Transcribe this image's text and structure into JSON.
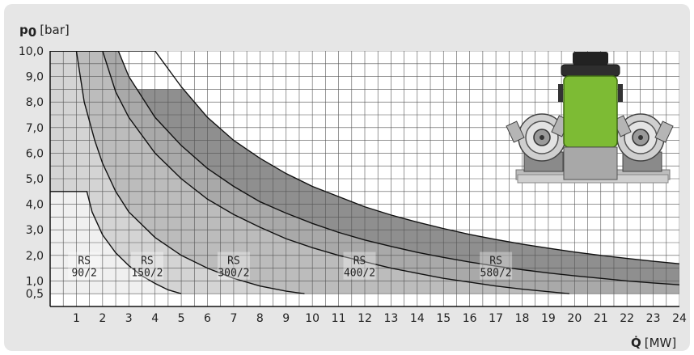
{
  "colors": {
    "background": "#e6e6e6",
    "plot_bg": "#ffffff",
    "grid": "#555555",
    "curve": "#111111",
    "shade_90": "#f0f0f0",
    "shade_150": "#d4d4d4",
    "shade_300": "#bcbcbc",
    "shade_400": "#a9a9a9",
    "shade_580": "#8f8f8f",
    "accent_green": "#7dbb34"
  },
  "chart_data": {
    "type": "area",
    "ylabel_symbol": "p",
    "ylabel_subscript": "0",
    "ylabel_unit": "[bar]",
    "xlabel_symbol": "Q̇",
    "xlabel_unit": "[MW]",
    "xlim": [
      0,
      24
    ],
    "ylim": [
      0,
      10
    ],
    "x_ticks": [
      1,
      2,
      3,
      4,
      5,
      6,
      7,
      8,
      9,
      10,
      11,
      12,
      13,
      14,
      15,
      16,
      17,
      18,
      19,
      20,
      21,
      22,
      23,
      24
    ],
    "y_ticks": [
      {
        "value": 0.5,
        "label": "0,5"
      },
      {
        "value": 1.0,
        "label": "1,0"
      },
      {
        "value": 2.0,
        "label": "2,0"
      },
      {
        "value": 3.0,
        "label": "3,0"
      },
      {
        "value": 4.0,
        "label": "4,0"
      },
      {
        "value": 5.0,
        "label": "5,0"
      },
      {
        "value": 6.0,
        "label": "6,0"
      },
      {
        "value": 7.0,
        "label": "7,0"
      },
      {
        "value": 8.0,
        "label": "8,0"
      },
      {
        "value": 9.0,
        "label": "9,0"
      },
      {
        "value": 10.0,
        "label": "10,0"
      }
    ],
    "grid": true,
    "grid_minor_step": 0.5,
    "series": [
      {
        "name": "RS 90/2",
        "label_lines": [
          "RS",
          "90/2"
        ],
        "label_at": [
          1.3,
          1.5
        ],
        "fill": "#f0f0f0",
        "boundary": [
          [
            0,
            4.5
          ],
          [
            1.4,
            4.5
          ],
          [
            1.6,
            3.7
          ],
          [
            2,
            2.8
          ],
          [
            2.5,
            2.1
          ],
          [
            3,
            1.6
          ],
          [
            3.5,
            1.2
          ],
          [
            4,
            0.9
          ],
          [
            4.5,
            0.65
          ],
          [
            5,
            0.5
          ]
        ]
      },
      {
        "name": "RS 150/2",
        "label_lines": [
          "RS",
          "150/2"
        ],
        "label_at": [
          3.7,
          1.5
        ],
        "fill": "#d4d4d4",
        "boundary": [
          [
            0,
            10
          ],
          [
            1,
            10
          ],
          [
            1.3,
            8
          ],
          [
            1.7,
            6.5
          ],
          [
            2,
            5.6
          ],
          [
            2.5,
            4.5
          ],
          [
            3,
            3.7
          ],
          [
            4,
            2.7
          ],
          [
            5,
            2.0
          ],
          [
            6,
            1.5
          ],
          [
            7,
            1.1
          ],
          [
            8,
            0.8
          ],
          [
            9,
            0.6
          ],
          [
            9.7,
            0.5
          ]
        ]
      },
      {
        "name": "RS 300/2",
        "label_lines": [
          "RS",
          "300/2"
        ],
        "label_at": [
          7.0,
          1.5
        ],
        "fill": "#bcbcbc",
        "boundary": [
          [
            0,
            10
          ],
          [
            2,
            10
          ],
          [
            2.5,
            8.4
          ],
          [
            3,
            7.4
          ],
          [
            4,
            6.0
          ],
          [
            5,
            5.0
          ],
          [
            6,
            4.2
          ],
          [
            7,
            3.6
          ],
          [
            8,
            3.1
          ],
          [
            9,
            2.65
          ],
          [
            10,
            2.3
          ],
          [
            11,
            2.0
          ],
          [
            12,
            1.75
          ],
          [
            13,
            1.5
          ],
          [
            14,
            1.3
          ],
          [
            15,
            1.1
          ],
          [
            16,
            0.95
          ],
          [
            17,
            0.8
          ],
          [
            18,
            0.68
          ],
          [
            19,
            0.58
          ],
          [
            19.8,
            0.5
          ]
        ]
      },
      {
        "name": "RS 400/2",
        "label_lines": [
          "RS",
          "400/2"
        ],
        "label_at": [
          11.8,
          1.5
        ],
        "fill": "#a9a9a9",
        "boundary": [
          [
            0,
            10
          ],
          [
            2.6,
            10
          ],
          [
            3,
            9
          ],
          [
            4,
            7.4
          ],
          [
            5,
            6.3
          ],
          [
            6,
            5.4
          ],
          [
            7,
            4.7
          ],
          [
            8,
            4.1
          ],
          [
            9,
            3.65
          ],
          [
            10,
            3.25
          ],
          [
            11,
            2.9
          ],
          [
            12,
            2.6
          ],
          [
            13,
            2.35
          ],
          [
            14,
            2.12
          ],
          [
            15,
            1.92
          ],
          [
            16,
            1.74
          ],
          [
            17,
            1.58
          ],
          [
            18,
            1.44
          ],
          [
            19,
            1.31
          ],
          [
            20,
            1.2
          ],
          [
            21,
            1.1
          ],
          [
            22,
            1.0
          ],
          [
            23,
            0.92
          ],
          [
            24,
            0.85
          ]
        ]
      },
      {
        "name": "RS 580/2",
        "label_lines": [
          "RS",
          "580/2"
        ],
        "label_at": [
          17.0,
          1.5
        ],
        "fill": "#8f8f8f",
        "boundary": [
          [
            0,
            10
          ],
          [
            4,
            10
          ],
          [
            5,
            8.6
          ],
          [
            6,
            7.4
          ],
          [
            7,
            6.5
          ],
          [
            8,
            5.8
          ],
          [
            9,
            5.2
          ],
          [
            10,
            4.7
          ],
          [
            11,
            4.3
          ],
          [
            12,
            3.9
          ],
          [
            13,
            3.58
          ],
          [
            14,
            3.3
          ],
          [
            15,
            3.05
          ],
          [
            16,
            2.82
          ],
          [
            17,
            2.62
          ],
          [
            18,
            2.44
          ],
          [
            19,
            2.28
          ],
          [
            20,
            2.13
          ],
          [
            21,
            2.0
          ],
          [
            22,
            1.88
          ],
          [
            23,
            1.77
          ],
          [
            24,
            1.67
          ]
        ]
      }
    ]
  }
}
